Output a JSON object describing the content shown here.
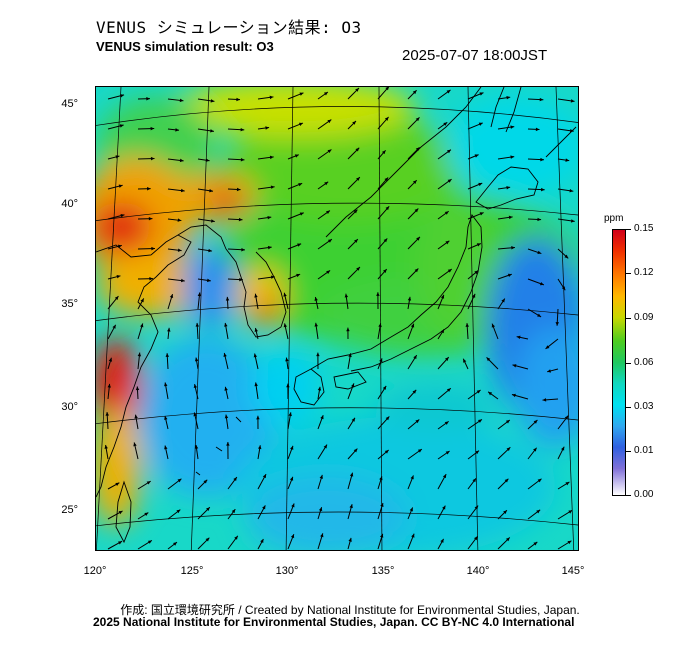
{
  "header": {
    "title_jp": "VENUS シミュレーション結果: O3",
    "title_en": "VENUS simulation result: O3",
    "timestamp": "2025-07-07 18:00JST"
  },
  "map": {
    "latitude_labels": [
      "45°",
      "40°",
      "35°",
      "30°",
      "25°"
    ],
    "longitude_labels": [
      "120°",
      "125°",
      "130°",
      "135°",
      "140°",
      "145°"
    ],
    "layers": [
      "ozone-concentration-field",
      "wind-vectors",
      "coastlines",
      "graticule"
    ]
  },
  "colorbar": {
    "unit": "ppm",
    "ticks": [
      "0.15",
      "0.12",
      "0.09",
      "0.06",
      "0.03",
      "0.01",
      "0.00"
    ]
  },
  "footer": {
    "credit_line": "作成: 国立環境研究所 / Created by National Institute for Environmental Studies, Japan.",
    "license_line": "2025 National Institute for Environmental Studies, Japan. CC BY-NC 4.0 International"
  },
  "colors": {
    "high": "#d0001a",
    "mid": "#20c860",
    "low": "#3060e0",
    "zero": "#ffffff"
  }
}
